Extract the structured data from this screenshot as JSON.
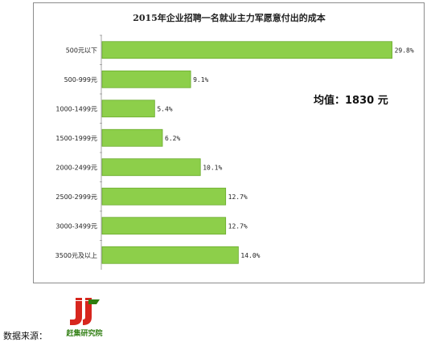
{
  "chart_data": {
    "type": "bar",
    "orientation": "horizontal",
    "title": "2015年企业招聘一名就业主力军愿意付出的成本",
    "categories": [
      "500元以下",
      "500-999元",
      "1000-1499元",
      "1500-1999元",
      "2000-2499元",
      "2500-2999元",
      "3000-3499元",
      "3500元及以上"
    ],
    "values": [
      29.8,
      9.1,
      5.4,
      6.2,
      10.1,
      12.7,
      12.7,
      14.0
    ],
    "value_labels": [
      "29.8%",
      "9.1%",
      "5.4%",
      "6.2%",
      "10.1%",
      "12.7%",
      "12.7%",
      "14.0%"
    ],
    "xlim": [
      0,
      30
    ],
    "grid": false,
    "annotation": "均值：1830 元",
    "bar_color": "#8dcf4a",
    "bar_border_color": "#6aaa2c"
  },
  "footer": {
    "source_label": "数据来源：",
    "logo_text": "赶集研究院"
  },
  "colors": {
    "logo_red": "#d7261e",
    "logo_green": "#2e7d10"
  }
}
